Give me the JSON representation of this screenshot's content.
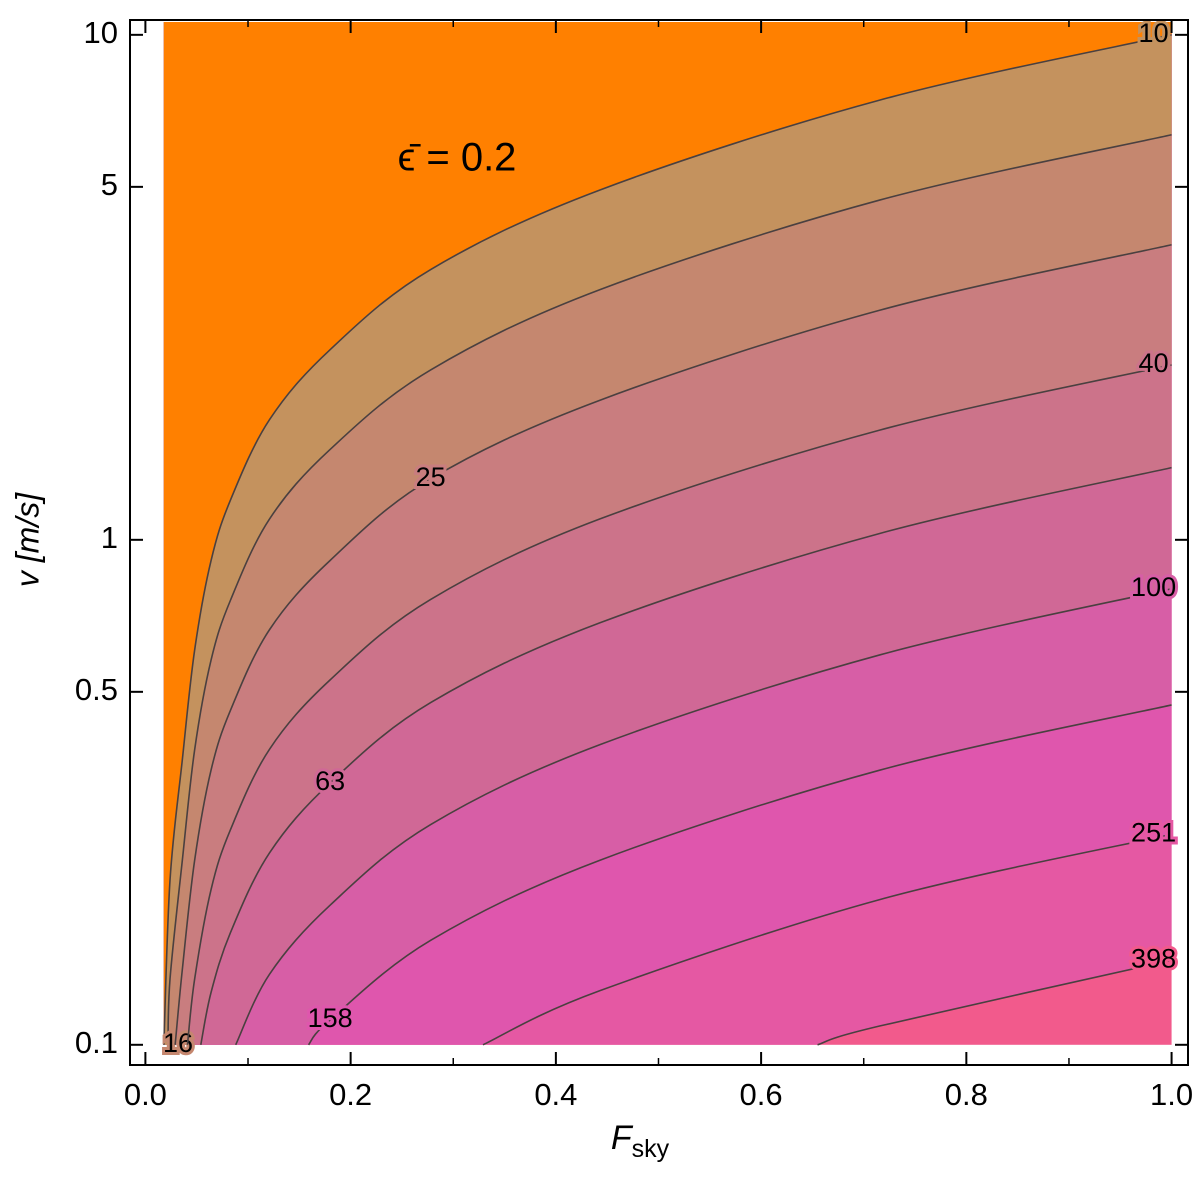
{
  "chart_data": {
    "type": "contour",
    "annotation": "ϵ̄ = 0.2",
    "xlabel": "F",
    "xlabel_subscript": "sky",
    "ylabel": "v  [m/s]",
    "xlim": [
      -0.015,
      1.016
    ],
    "ylim": [
      0.0912,
      10.7
    ],
    "ylog": true,
    "xticks": [
      {
        "value": 0,
        "label": "0.0"
      },
      0.2,
      0.4,
      0.6,
      0.8,
      {
        "value": 1,
        "label": "1.0"
      }
    ],
    "yticks": [
      0.1,
      0.5,
      1,
      5,
      10
    ],
    "colors": [
      "#ff8000",
      "#c4925e",
      "#c5876f",
      "#c97d7f",
      "#cc738a",
      "#d06896",
      "#d75ea6",
      "#df56ad",
      "#e558a3",
      "#f25a8c"
    ],
    "line_color": "#4a4040",
    "contours": [
      {
        "level": 10,
        "x": [
          0.018,
          0.024,
          0.036,
          0.048,
          0.064,
          0.083,
          0.121,
          0.18,
          0.278,
          0.443,
          0.716,
          1
        ],
        "y": [
          0.1,
          0.212,
          0.367,
          0.605,
          0.91,
          1.2,
          1.73,
          2.38,
          3.43,
          4.93,
          7.43,
          10
        ]
      },
      {
        "level": 16,
        "x": [
          0.022,
          0.024,
          0.036,
          0.048,
          0.064,
          0.083,
          0.121,
          0.18,
          0.278,
          0.443,
          0.716,
          1
        ],
        "y": [
          0.1,
          0.135,
          0.232,
          0.384,
          0.578,
          0.76,
          1.1,
          1.51,
          2.17,
          3.13,
          4.71,
          6.34
        ]
      },
      {
        "level": 25,
        "x": [
          0.029,
          0.036,
          0.048,
          0.064,
          0.083,
          0.121,
          0.18,
          0.278,
          0.443,
          0.716,
          1
        ],
        "y": [
          0.1,
          0.141,
          0.232,
          0.35,
          0.46,
          0.664,
          0.91,
          1.32,
          1.89,
          2.85,
          3.84
        ]
      },
      {
        "level": 40,
        "x": [
          0.041,
          0.048,
          0.064,
          0.083,
          0.121,
          0.18,
          0.278,
          0.443,
          0.716,
          1
        ],
        "y": [
          0.1,
          0.135,
          0.203,
          0.267,
          0.385,
          0.528,
          0.762,
          1.1,
          1.65,
          2.22
        ]
      },
      {
        "level": 63,
        "x": [
          0.054,
          0.064,
          0.083,
          0.121,
          0.18,
          0.278,
          0.443,
          0.716,
          1
        ],
        "y": [
          0.1,
          0.127,
          0.167,
          0.24,
          0.33,
          0.476,
          0.685,
          1.03,
          1.39
        ]
      },
      {
        "level": 100,
        "x": [
          0.088,
          0.121,
          0.18,
          0.278,
          0.443,
          0.716,
          1
        ],
        "y": [
          0.1,
          0.138,
          0.189,
          0.273,
          0.393,
          0.592,
          0.8
        ]
      },
      {
        "level": 158,
        "x": [
          0.159,
          0.18,
          0.278,
          0.443,
          0.716,
          1
        ],
        "y": [
          0.1,
          0.112,
          0.161,
          0.232,
          0.35,
          0.471
        ]
      },
      {
        "level": 251,
        "x": [
          0.329,
          0.443,
          0.716,
          1
        ],
        "y": [
          0.1,
          0.128,
          0.194,
          0.261
        ]
      },
      {
        "level": 398,
        "x": [
          0.655,
          0.716,
          1
        ],
        "y": [
          0.1,
          0.109,
          0.147
        ]
      }
    ]
  }
}
